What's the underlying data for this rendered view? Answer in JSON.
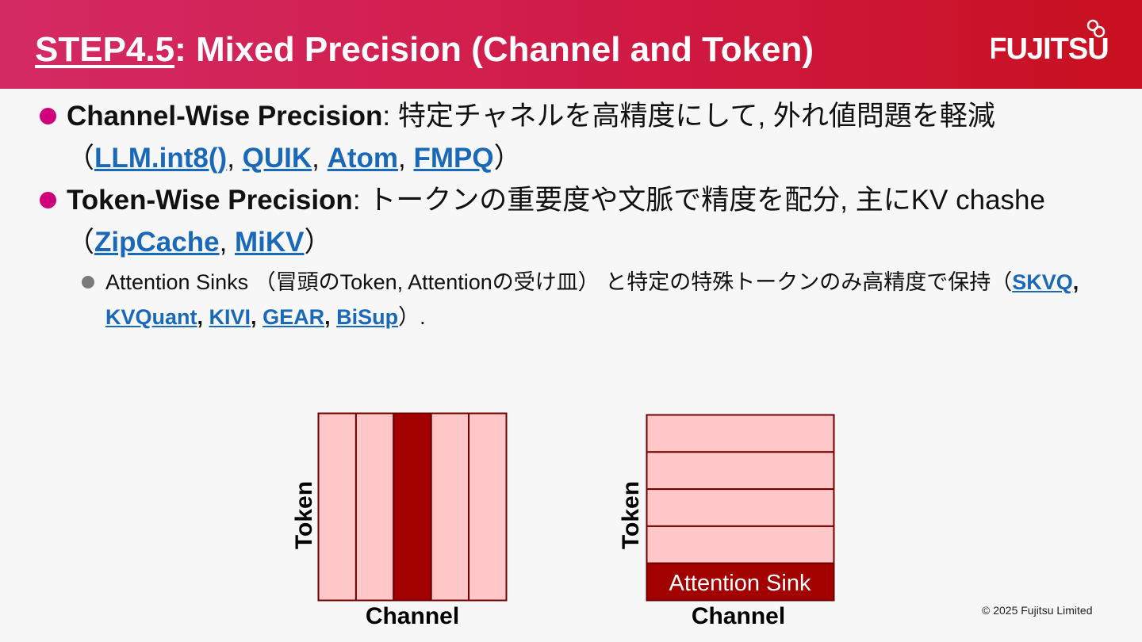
{
  "header": {
    "title": [
      {
        "text": "STEP4.5",
        "underline": true
      },
      {
        "text": ": Mixed Precision (Channel and Token)"
      }
    ],
    "logo": "FUJITSU"
  },
  "bullets": [
    {
      "level": 1,
      "segments": [
        {
          "text": "Channel-Wise Precision",
          "bold": true
        },
        {
          "text": ": 特定チャネルを高精度にして, 外れ値問題を軽減（"
        },
        {
          "text": "LLM.int8()",
          "link": true
        },
        {
          "text": ", "
        },
        {
          "text": "QUIK",
          "link": true
        },
        {
          "text": ", "
        },
        {
          "text": "Atom",
          "link": true
        },
        {
          "text": ", "
        },
        {
          "text": "FMPQ",
          "link": true
        },
        {
          "text": "）"
        }
      ]
    },
    {
      "level": 1,
      "segments": [
        {
          "text": "Token-Wise Precision",
          "bold": true
        },
        {
          "text": ": トークンの重要度や文脈で精度を配分, 主にKV chashe（"
        },
        {
          "text": "ZipCache",
          "link": true
        },
        {
          "text": ", "
        },
        {
          "text": "MiKV",
          "link": true
        },
        {
          "text": "）"
        }
      ]
    },
    {
      "level": 2,
      "segments": [
        {
          "text": "Attention Sinks （冒頭のToken, Attentionの受け皿） と特定の特殊トークンのみ高精度で保持（"
        },
        {
          "text": "SKVQ",
          "link": true
        },
        {
          "text": ", ",
          "bold": true
        },
        {
          "text": "KVQuant",
          "link": true
        },
        {
          "text": ", ",
          "bold": true
        },
        {
          "text": "KIVI",
          "link": true
        },
        {
          "text": ", ",
          "bold": true
        },
        {
          "text": "GEAR",
          "link": true
        },
        {
          "text": ", ",
          "bold": true
        },
        {
          "text": "BiSup",
          "link": true
        },
        {
          "text": "）."
        }
      ]
    }
  ],
  "diagrams": [
    {
      "y_label": "Token",
      "x_label": "Channel"
    },
    {
      "y_label": "Token",
      "x_label": "Channel",
      "highlight_label": "Attention Sink"
    }
  ],
  "footer": "© 2025 Fujitsu Limited"
}
